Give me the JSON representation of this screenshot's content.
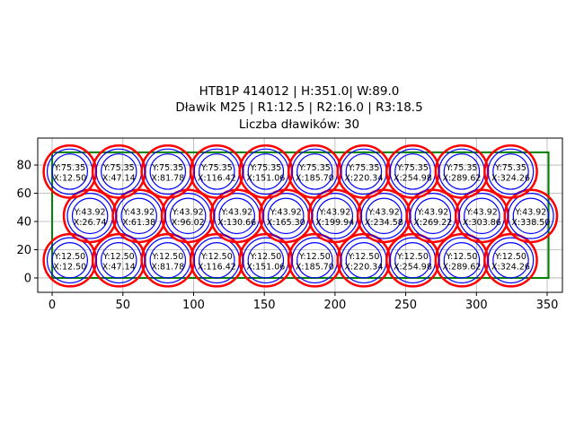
{
  "chart_data": {
    "type": "scatter",
    "title_lines": [
      "HTB1P 414012 | H:351.0| W:89.0",
      "Dławik M25 | R1:12.5 | R2:16.0 | R3:18.5"
    ],
    "subtitle": "Liczba dławików: 30",
    "xlabel": "",
    "ylabel": "",
    "xlim": [
      -10.2,
      360.8
    ],
    "ylim": [
      -10.2,
      99.1
    ],
    "xticks": [
      0,
      50,
      100,
      150,
      200,
      250,
      300,
      350
    ],
    "yticks": [
      0,
      20,
      40,
      60,
      80
    ],
    "grid": true,
    "aspect": "equal",
    "enclosure": {
      "x": [
        0,
        351
      ],
      "y": [
        0,
        89
      ],
      "color": "#008000"
    },
    "radii": {
      "R1": 12.5,
      "R2": 16.0,
      "R3": 18.5
    },
    "colors": {
      "R1": "#0000ff",
      "R2": "#0000ff",
      "R3": "#ff0000"
    },
    "rows": [
      {
        "y": 12.5,
        "x": [
          12.5,
          47.14,
          81.78,
          116.42,
          151.06,
          185.7,
          220.34,
          254.98,
          289.62,
          324.26
        ]
      },
      {
        "y": 43.92,
        "x": [
          26.74,
          61.38,
          96.02,
          130.66,
          165.3,
          199.94,
          234.58,
          269.22,
          303.86,
          338.5
        ]
      },
      {
        "y": 75.35,
        "x": [
          12.5,
          47.14,
          81.78,
          116.42,
          151.06,
          185.7,
          220.34,
          254.98,
          289.62,
          324.26
        ]
      }
    ]
  }
}
